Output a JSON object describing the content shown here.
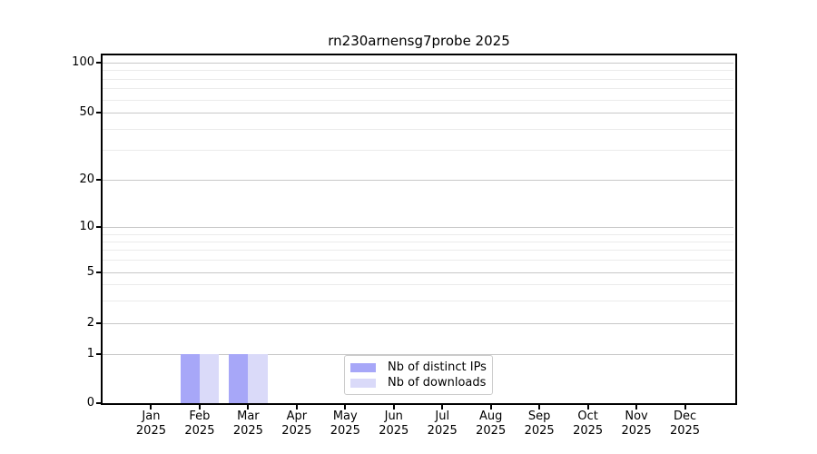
{
  "chart_data": {
    "type": "bar",
    "title": "rn230arnensg7probe 2025",
    "categories": [
      {
        "month": "Jan",
        "year": "2025"
      },
      {
        "month": "Feb",
        "year": "2025"
      },
      {
        "month": "Mar",
        "year": "2025"
      },
      {
        "month": "Apr",
        "year": "2025"
      },
      {
        "month": "May",
        "year": "2025"
      },
      {
        "month": "Jun",
        "year": "2025"
      },
      {
        "month": "Jul",
        "year": "2025"
      },
      {
        "month": "Aug",
        "year": "2025"
      },
      {
        "month": "Sep",
        "year": "2025"
      },
      {
        "month": "Oct",
        "year": "2025"
      },
      {
        "month": "Nov",
        "year": "2025"
      },
      {
        "month": "Dec",
        "year": "2025"
      }
    ],
    "series": [
      {
        "name": "Nb of distinct IPs",
        "color": "#a7a7f8",
        "values": [
          0,
          1,
          1,
          0,
          0,
          0,
          0,
          0,
          0,
          0,
          0,
          0
        ]
      },
      {
        "name": "Nb of downloads",
        "color": "#dadaf9",
        "values": [
          0,
          1,
          1,
          0,
          0,
          0,
          0,
          0,
          0,
          0,
          0,
          0
        ]
      }
    ],
    "yscale": "symlog",
    "y_major_ticks": [
      0,
      1,
      2,
      5,
      10,
      20,
      50,
      100
    ],
    "y_minor_ticks": [
      3,
      4,
      6,
      7,
      8,
      9,
      30,
      40,
      60,
      70,
      80,
      90
    ],
    "ylim": [
      0,
      110
    ],
    "grid": "on",
    "legend_position": "lower-center-inside",
    "colors": {
      "grid_major": "#c8c8c8",
      "grid_minor": "#ebebeb",
      "spine": "#000000"
    }
  }
}
